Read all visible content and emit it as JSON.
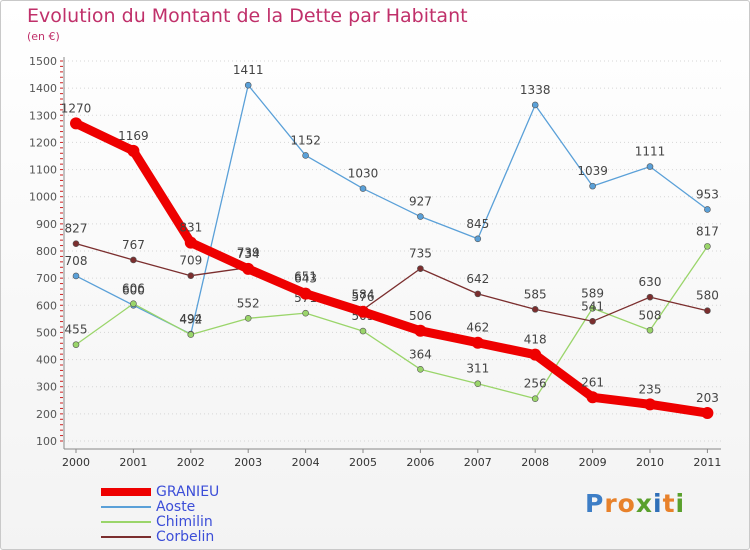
{
  "header": {
    "title": "Evolution du Montant de la Dette par Habitant",
    "subtitle": "(en €)"
  },
  "brand": {
    "text": "Proxiti",
    "letter_colors": [
      "#3d7ec6",
      "#e8812a",
      "#e8812a",
      "#5aa02c",
      "#2f6fb8",
      "#e8812a",
      "#5aa02c"
    ]
  },
  "chart_data": {
    "type": "line",
    "x": [
      "2000",
      "2001",
      "2002",
      "2003",
      "2004",
      "2005",
      "2006",
      "2007",
      "2008",
      "2009",
      "2010",
      "2011"
    ],
    "ylim": [
      100,
      1500
    ],
    "yticks": [
      "100",
      "200",
      "300",
      "400",
      "500",
      "600",
      "700",
      "800",
      "900",
      "1000",
      "1100",
      "1200",
      "1300",
      "1400",
      "1500"
    ],
    "grid": "horizontal dotted",
    "legend_position": "bottom-left",
    "series": [
      {
        "name": "GRANIEU",
        "color": "#ee0000",
        "emphasis": true,
        "values": [
          1270,
          1169,
          831,
          734,
          643,
          576,
          506,
          462,
          418,
          261,
          235,
          203
        ]
      },
      {
        "name": "Aoste",
        "color": "#5aa0d8",
        "values": [
          708,
          600,
          494,
          1411,
          1152,
          1030,
          927,
          845,
          1338,
          1039,
          1111,
          953
        ]
      },
      {
        "name": "Chimilin",
        "color": "#9ad56a",
        "values": [
          455,
          606,
          492,
          552,
          571,
          505,
          364,
          311,
          256,
          589,
          508,
          817
        ]
      },
      {
        "name": "Corbelin",
        "color": "#7b2e2e",
        "values": [
          827,
          767,
          709,
          739,
          651,
          584,
          735,
          642,
          585,
          541,
          630,
          580
        ]
      }
    ]
  }
}
